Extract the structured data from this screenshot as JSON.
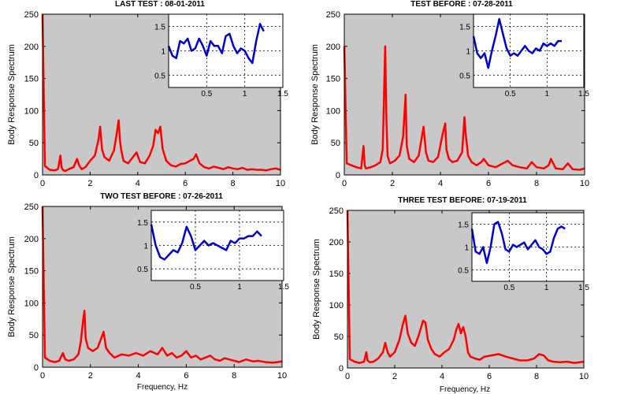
{
  "chart_data": [
    {
      "type": "line",
      "title": "LAST TEST : 08-01-2011",
      "xlabel": "",
      "ylabel": "Body Response Spectrum",
      "xlim": [
        0,
        10
      ],
      "ylim": [
        0,
        250
      ],
      "xticks": [
        0,
        2,
        4,
        6,
        8,
        10
      ],
      "yticks": [
        0,
        50,
        100,
        150,
        200,
        250
      ],
      "background": "#c8c8c8",
      "series": [
        {
          "color": "#ff0000",
          "x": [
            0.0,
            0.1,
            0.3,
            0.5,
            0.65,
            0.75,
            0.8,
            0.85,
            0.95,
            1.1,
            1.3,
            1.45,
            1.55,
            1.65,
            1.8,
            2.0,
            2.2,
            2.35,
            2.42,
            2.5,
            2.6,
            2.8,
            3.0,
            3.1,
            3.2,
            3.25,
            3.3,
            3.4,
            3.6,
            3.8,
            3.95,
            4.1,
            4.3,
            4.5,
            4.65,
            4.75,
            4.85,
            4.95,
            5.05,
            5.2,
            5.4,
            5.6,
            5.8,
            6.0,
            6.2,
            6.35,
            6.45,
            6.6,
            6.8,
            7.0,
            7.2,
            7.4,
            7.6,
            7.8,
            8.0,
            8.2,
            8.4,
            8.6,
            8.8,
            9.0,
            9.2,
            9.4,
            9.6,
            9.8,
            10.0
          ],
          "y": [
            250,
            14,
            8,
            7,
            9,
            30,
            12,
            8,
            6,
            9,
            12,
            25,
            14,
            9,
            12,
            22,
            30,
            55,
            75,
            40,
            28,
            22,
            38,
            60,
            85,
            55,
            40,
            22,
            18,
            28,
            35,
            20,
            18,
            30,
            45,
            70,
            65,
            75,
            40,
            22,
            15,
            13,
            17,
            18,
            22,
            25,
            32,
            18,
            12,
            10,
            13,
            11,
            9,
            12,
            10,
            9,
            11,
            8,
            9,
            8,
            8,
            7,
            9,
            10,
            8
          ]
        }
      ],
      "inset": {
        "xlim": [
          0,
          1.5
        ],
        "ylim": [
          0.25,
          1.75
        ],
        "xticks": [
          0.5,
          1,
          1.5
        ],
        "xtick_labels": [
          "0.5",
          "1",
          "1.5"
        ],
        "yticks": [
          0.5,
          1,
          1.5
        ],
        "ytick_labels": [
          "0.5",
          "1",
          "1.5"
        ],
        "line_color": "#0000cc",
        "x": [
          0.0,
          0.05,
          0.1,
          0.15,
          0.2,
          0.25,
          0.3,
          0.35,
          0.4,
          0.45,
          0.5,
          0.55,
          0.6,
          0.65,
          0.7,
          0.75,
          0.8,
          0.85,
          0.9,
          0.95,
          1.0,
          1.05,
          1.1,
          1.15,
          1.2,
          1.25
        ],
        "y": [
          1.1,
          0.9,
          0.85,
          1.2,
          1.15,
          1.25,
          1.0,
          1.05,
          1.25,
          1.1,
          0.9,
          1.2,
          1.1,
          1.1,
          0.95,
          1.3,
          1.35,
          1.1,
          0.95,
          1.05,
          1.0,
          0.85,
          0.75,
          1.2,
          1.55,
          1.4
        ]
      }
    },
    {
      "type": "line",
      "title": "TEST BEFORE : 07-28-2011",
      "xlabel": "",
      "ylabel": "Body Response Spectrum",
      "xlim": [
        0,
        10
      ],
      "ylim": [
        0,
        250
      ],
      "xticks": [
        0,
        2,
        4,
        6,
        8,
        10
      ],
      "yticks": [
        0,
        50,
        100,
        150,
        200,
        250
      ],
      "background": "#c8c8c8",
      "series": [
        {
          "color": "#ff0000",
          "x": [
            0.0,
            0.1,
            0.3,
            0.5,
            0.7,
            0.8,
            0.85,
            0.9,
            1.1,
            1.3,
            1.5,
            1.6,
            1.7,
            1.75,
            1.8,
            1.9,
            2.1,
            2.3,
            2.45,
            2.55,
            2.6,
            2.7,
            2.9,
            3.1,
            3.3,
            3.4,
            3.5,
            3.7,
            3.9,
            4.1,
            4.2,
            4.25,
            4.35,
            4.5,
            4.7,
            4.9,
            5.0,
            5.05,
            5.15,
            5.3,
            5.5,
            5.7,
            5.8,
            6.0,
            6.3,
            6.6,
            6.8,
            7.0,
            7.3,
            7.6,
            7.8,
            8.0,
            8.3,
            8.5,
            8.6,
            8.8,
            9.1,
            9.3,
            9.5,
            9.8,
            10.0
          ],
          "y": [
            200,
            18,
            15,
            12,
            10,
            45,
            15,
            10,
            12,
            15,
            20,
            40,
            200,
            90,
            30,
            18,
            22,
            30,
            60,
            125,
            45,
            25,
            20,
            30,
            75,
            35,
            22,
            20,
            28,
            65,
            80,
            40,
            25,
            20,
            22,
            35,
            90,
            65,
            30,
            20,
            15,
            20,
            25,
            15,
            12,
            18,
            22,
            15,
            12,
            10,
            20,
            12,
            10,
            15,
            25,
            10,
            9,
            18,
            9,
            8,
            10
          ]
        }
      ],
      "inset": {
        "xlim": [
          0,
          1.5
        ],
        "ylim": [
          0.25,
          1.75
        ],
        "xticks": [
          0.5,
          1,
          1.5
        ],
        "xtick_labels": [
          "0.5",
          "1",
          "1.5"
        ],
        "yticks": [
          0.5,
          1,
          1.5
        ],
        "ytick_labels": [
          "0.5",
          "1",
          "1.5"
        ],
        "line_color": "#0000cc",
        "x": [
          0.0,
          0.05,
          0.1,
          0.15,
          0.2,
          0.25,
          0.3,
          0.35,
          0.4,
          0.45,
          0.5,
          0.55,
          0.6,
          0.65,
          0.7,
          0.75,
          0.8,
          0.85,
          0.9,
          0.95,
          1.0,
          1.05,
          1.1,
          1.15,
          1.2
        ],
        "y": [
          1.3,
          0.95,
          0.85,
          0.95,
          0.65,
          1.0,
          1.3,
          1.65,
          1.35,
          1.05,
          0.9,
          0.95,
          0.9,
          1.0,
          1.1,
          1.0,
          0.95,
          1.05,
          1.0,
          1.15,
          1.1,
          1.15,
          1.1,
          1.2,
          1.2
        ]
      }
    },
    {
      "type": "line",
      "title": "TWO TEST BEFORE : 07-26-2011",
      "xlabel": "Frequency, Hz",
      "ylabel": "Body Response Spectrum",
      "xlim": [
        0,
        10
      ],
      "ylim": [
        0,
        250
      ],
      "xticks": [
        0,
        2,
        4,
        6,
        8,
        10
      ],
      "yticks": [
        0,
        50,
        100,
        150,
        200,
        250
      ],
      "background": "#c8c8c8",
      "series": [
        {
          "color": "#ff0000",
          "x": [
            0.0,
            0.1,
            0.3,
            0.5,
            0.7,
            0.85,
            0.95,
            1.1,
            1.3,
            1.5,
            1.6,
            1.7,
            1.75,
            1.8,
            1.9,
            2.1,
            2.3,
            2.45,
            2.55,
            2.65,
            2.8,
            3.0,
            3.3,
            3.6,
            3.9,
            4.2,
            4.5,
            4.8,
            5.0,
            5.2,
            5.4,
            5.6,
            5.8,
            6.0,
            6.2,
            6.4,
            6.6,
            6.8,
            7.0,
            7.2,
            7.4,
            7.6,
            7.8,
            8.0,
            8.2,
            8.5,
            8.8,
            9.0,
            9.3,
            9.6,
            10.0
          ],
          "y": [
            250,
            15,
            10,
            8,
            10,
            22,
            12,
            10,
            12,
            20,
            40,
            75,
            88,
            45,
            30,
            25,
            30,
            45,
            55,
            30,
            22,
            15,
            20,
            18,
            22,
            18,
            25,
            20,
            30,
            18,
            22,
            15,
            18,
            25,
            15,
            18,
            12,
            15,
            18,
            12,
            10,
            14,
            12,
            10,
            8,
            12,
            9,
            10,
            8,
            7,
            9
          ]
        }
      ],
      "inset": {
        "xlim": [
          0,
          1.5
        ],
        "ylim": [
          0.25,
          1.75
        ],
        "xticks": [
          0.5,
          1,
          1.5
        ],
        "xtick_labels": [
          "0.5",
          "1",
          "1.5"
        ],
        "yticks": [
          0.5,
          1,
          1.5
        ],
        "ytick_labels": [
          "0.5",
          "1",
          "1.5"
        ],
        "line_color": "#0000cc",
        "x": [
          0.0,
          0.05,
          0.1,
          0.15,
          0.2,
          0.25,
          0.3,
          0.35,
          0.4,
          0.45,
          0.5,
          0.55,
          0.6,
          0.65,
          0.7,
          0.75,
          0.8,
          0.85,
          0.9,
          0.95,
          1.0,
          1.05,
          1.1,
          1.15,
          1.2,
          1.25
        ],
        "y": [
          1.45,
          1.0,
          0.75,
          0.7,
          0.8,
          0.9,
          0.85,
          1.05,
          1.4,
          1.2,
          0.9,
          1.0,
          1.1,
          1.0,
          1.05,
          1.0,
          0.95,
          0.9,
          1.1,
          1.05,
          1.15,
          1.15,
          1.2,
          1.2,
          1.3,
          1.2
        ]
      }
    },
    {
      "type": "line",
      "title": "THREE TEST BEFORE:   07-19-2011",
      "xlabel": "Frequency, Hz",
      "ylabel": "Body Response Spectrum",
      "xlim": [
        0,
        10
      ],
      "ylim": [
        0,
        250
      ],
      "xticks": [
        0,
        2,
        4,
        6,
        8,
        10
      ],
      "yticks": [
        0,
        50,
        100,
        150,
        200,
        250
      ],
      "background": "#c8c8c8",
      "series": [
        {
          "color": "#ff0000",
          "x": [
            0.0,
            0.1,
            0.3,
            0.5,
            0.7,
            0.8,
            0.85,
            0.95,
            1.1,
            1.3,
            1.5,
            1.6,
            1.7,
            1.8,
            2.0,
            2.2,
            2.35,
            2.45,
            2.55,
            2.7,
            2.85,
            3.0,
            3.2,
            3.3,
            3.4,
            3.55,
            3.7,
            3.9,
            4.1,
            4.3,
            4.5,
            4.6,
            4.7,
            4.8,
            4.9,
            5.0,
            5.1,
            5.2,
            5.4,
            5.6,
            5.8,
            6.1,
            6.4,
            6.7,
            7.0,
            7.3,
            7.6,
            7.9,
            8.1,
            8.3,
            8.5,
            8.7,
            9.0,
            9.3,
            9.6,
            10.0
          ],
          "y": [
            250,
            14,
            10,
            8,
            10,
            25,
            12,
            9,
            10,
            15,
            25,
            40,
            25,
            18,
            25,
            45,
            70,
            83,
            55,
            40,
            35,
            50,
            75,
            72,
            45,
            30,
            22,
            18,
            25,
            30,
            45,
            60,
            70,
            55,
            65,
            50,
            25,
            18,
            15,
            13,
            18,
            20,
            22,
            18,
            15,
            12,
            12,
            15,
            22,
            20,
            12,
            10,
            9,
            10,
            8,
            10
          ]
        }
      ],
      "inset": {
        "xlim": [
          0,
          1.5
        ],
        "ylim": [
          0.25,
          1.75
        ],
        "xticks": [
          0.5,
          1,
          1.5
        ],
        "xtick_labels": [
          "0.5",
          "1",
          "1.5"
        ],
        "yticks": [
          0.5,
          1,
          1.5
        ],
        "ytick_labels": [
          "0.5",
          "1",
          "1.5"
        ],
        "line_color": "#0000cc",
        "x": [
          0.0,
          0.05,
          0.1,
          0.15,
          0.2,
          0.25,
          0.3,
          0.35,
          0.4,
          0.45,
          0.5,
          0.55,
          0.6,
          0.65,
          0.7,
          0.75,
          0.8,
          0.85,
          0.9,
          0.95,
          1.0,
          1.05,
          1.1,
          1.15,
          1.2,
          1.25
        ],
        "y": [
          1.4,
          0.9,
          0.85,
          1.0,
          0.65,
          1.0,
          1.5,
          1.55,
          1.3,
          0.95,
          0.9,
          1.05,
          1.0,
          1.05,
          1.1,
          0.95,
          1.05,
          1.15,
          1.0,
          0.95,
          0.85,
          0.9,
          1.2,
          1.4,
          1.45,
          1.4
        ]
      }
    }
  ]
}
